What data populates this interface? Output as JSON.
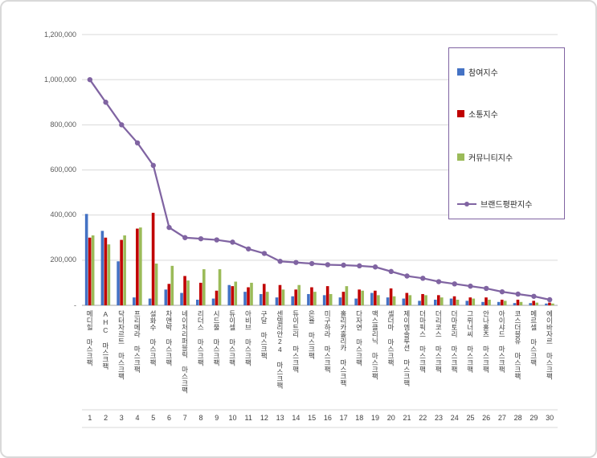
{
  "chart_data": {
    "type": "bar+line",
    "title": "",
    "categories": [
      "메디힐 마스크팩",
      "AHC 마스크팩",
      "닥터자르트 마스크팩",
      "프리메라 마스크팩",
      "설화수 마스크팩",
      "차앤박 마스크팩",
      "네이처리퍼블릭 마스크팩",
      "리더스 마스크팩",
      "시드물 마스크팩",
      "듀이셀 마스크팩",
      "아비브 마스크팩",
      "구달 마스크팩",
      "센텔리안24 마스크팩",
      "듀이트리 마스크팩",
      "은율 마스크팩",
      "미구하라 마스크팩",
      "홀리카홀리카 마스크팩",
      "다자연 마스크팩",
      "맥스클리닉 마스크팩",
      "셀더마 마스크팩",
      "제이엠솔루션 마스크팩",
      "더마픽스 마스크팩",
      "더리코스 마스크팩",
      "더마토리 마스크팩",
      "그뤼너씨 마스크팩",
      "안나홀츠 마스크팩",
      "아이샤드 마스크팩",
      "코스더블유 마스크팩",
      "메르셀 마스크팩",
      "에이바자르 마스크팩"
    ],
    "ranks": [
      1,
      2,
      3,
      4,
      5,
      6,
      7,
      8,
      9,
      10,
      11,
      12,
      13,
      14,
      15,
      16,
      17,
      18,
      19,
      20,
      21,
      22,
      23,
      24,
      25,
      26,
      27,
      28,
      29,
      30
    ],
    "series": [
      {
        "name": "참여지수",
        "type": "bar",
        "color": "#4472C4",
        "values": [
          405000,
          330000,
          195000,
          35000,
          30000,
          70000,
          55000,
          25000,
          30000,
          90000,
          60000,
          50000,
          35000,
          40000,
          50000,
          45000,
          35000,
          30000,
          55000,
          35000,
          30000,
          20000,
          25000,
          30000,
          20000,
          15000,
          15000,
          10000,
          10000,
          8000
        ]
      },
      {
        "name": "소통지수",
        "type": "bar",
        "color": "#C00000",
        "values": [
          300000,
          300000,
          290000,
          340000,
          410000,
          95000,
          130000,
          100000,
          65000,
          85000,
          80000,
          95000,
          90000,
          70000,
          80000,
          85000,
          60000,
          70000,
          65000,
          75000,
          55000,
          50000,
          45000,
          40000,
          35000,
          35000,
          25000,
          25000,
          20000,
          12000
        ]
      },
      {
        "name": "커뮤니티지수",
        "type": "bar",
        "color": "#9BBB59",
        "values": [
          310000,
          270000,
          310000,
          345000,
          185000,
          175000,
          110000,
          160000,
          160000,
          105000,
          100000,
          60000,
          70000,
          90000,
          60000,
          50000,
          85000,
          65000,
          45000,
          40000,
          45000,
          45000,
          35000,
          25000,
          30000,
          25000,
          20000,
          15000,
          12000,
          8000
        ]
      },
      {
        "name": "브랜드평판지수",
        "type": "line",
        "color": "#8064A2",
        "values": [
          1000000,
          900000,
          800000,
          720000,
          620000,
          345000,
          300000,
          295000,
          290000,
          280000,
          250000,
          230000,
          195000,
          190000,
          185000,
          180000,
          178000,
          175000,
          170000,
          150000,
          130000,
          120000,
          105000,
          95000,
          85000,
          75000,
          60000,
          50000,
          40000,
          25000
        ]
      }
    ],
    "ylim": [
      0,
      1200000
    ],
    "ytick_interval": 200000,
    "ytick_labels": [
      "-",
      "200,000",
      "400,000",
      "600,000",
      "800,000",
      "1,000,000",
      "1,200,000"
    ],
    "grid": true,
    "legend_position": "right-top"
  }
}
